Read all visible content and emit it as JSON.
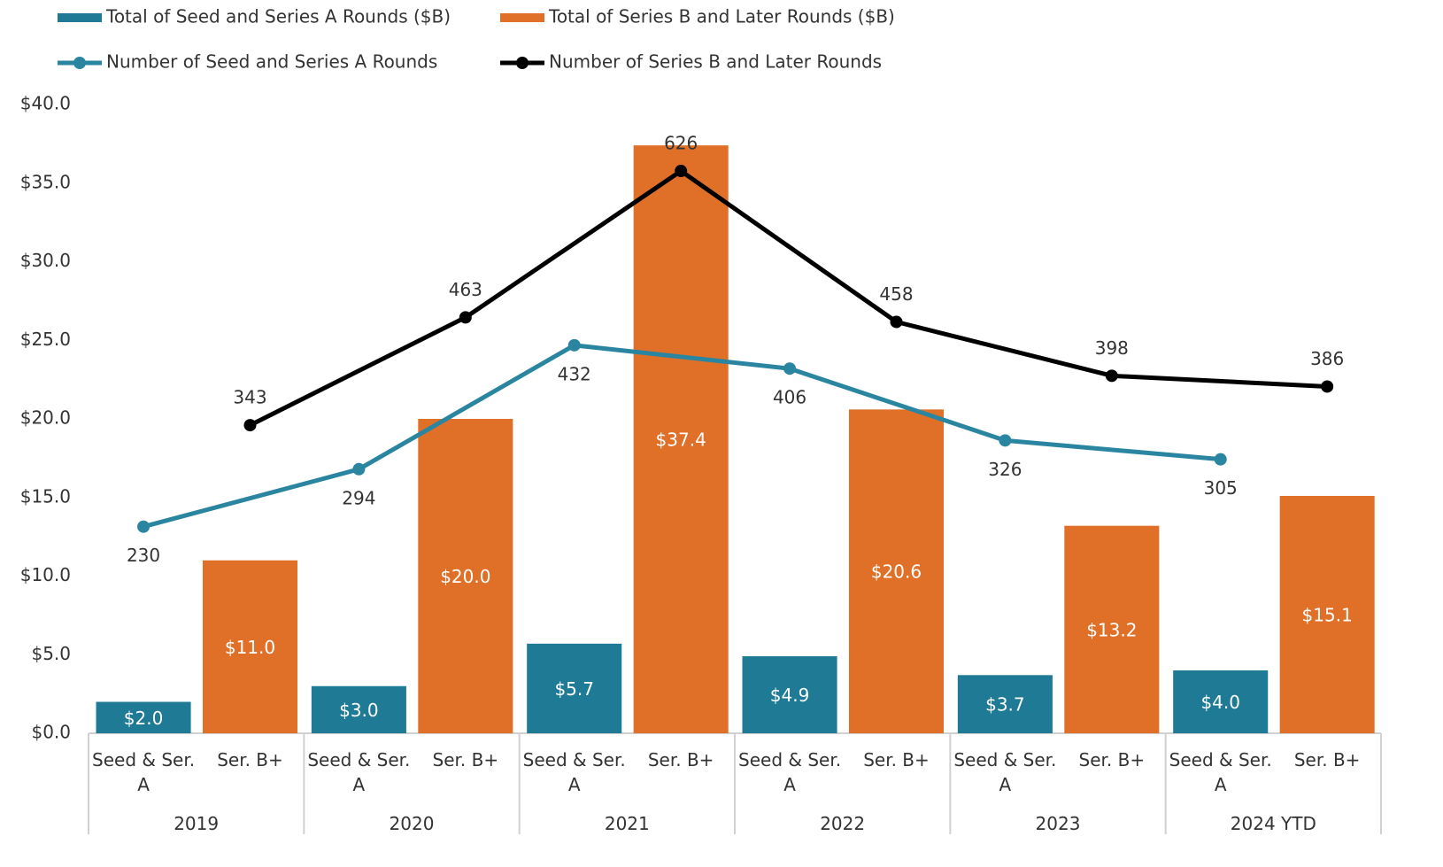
{
  "chart_data": {
    "type": "bar",
    "categories": [
      "2019",
      "2020",
      "2021",
      "2022",
      "2023",
      "2024 YTD"
    ],
    "subcategories": [
      "Seed & Ser. A",
      "Ser. B+"
    ],
    "ylim": [
      0,
      40
    ],
    "yticks": [
      {
        "value": 0,
        "label": "$0.0"
      },
      {
        "value": 5,
        "label": "$5.0"
      },
      {
        "value": 10,
        "label": "$10.0"
      },
      {
        "value": 15,
        "label": "$15.0"
      },
      {
        "value": 20,
        "label": "$20.0"
      },
      {
        "value": 25,
        "label": "$25.0"
      },
      {
        "value": 30,
        "label": "$30.0"
      },
      {
        "value": 35,
        "label": "$35.0"
      },
      {
        "value": 40,
        "label": "$40.0"
      }
    ],
    "y2lim": [
      0,
      700
    ],
    "series": [
      {
        "name": "Total of Seed and Series A Rounds ($B)",
        "type": "bar",
        "color": "#1f7a96",
        "values": [
          2.0,
          3.0,
          5.7,
          4.9,
          3.7,
          4.0
        ],
        "value_labels": [
          "$2.0",
          "$3.0",
          "$5.7",
          "$4.9",
          "$3.7",
          "$4.0"
        ]
      },
      {
        "name": "Total of Series B and Later Rounds ($B)",
        "type": "bar",
        "color": "#e07028",
        "values": [
          11.0,
          20.0,
          37.4,
          20.6,
          13.2,
          15.1
        ],
        "value_labels": [
          "$11.0",
          "$20.0",
          "$37.4",
          "$20.6",
          "$13.2",
          "$15.1"
        ]
      },
      {
        "name": "Number of Seed and Series A Rounds",
        "type": "line",
        "axis": "y2",
        "color": "#2a86a0",
        "values": [
          230,
          294,
          432,
          406,
          326,
          305
        ]
      },
      {
        "name": "Number of Series B and Later Rounds",
        "type": "line",
        "axis": "y2",
        "color": "#000000",
        "values": [
          343,
          463,
          626,
          458,
          398,
          386
        ]
      }
    ]
  }
}
